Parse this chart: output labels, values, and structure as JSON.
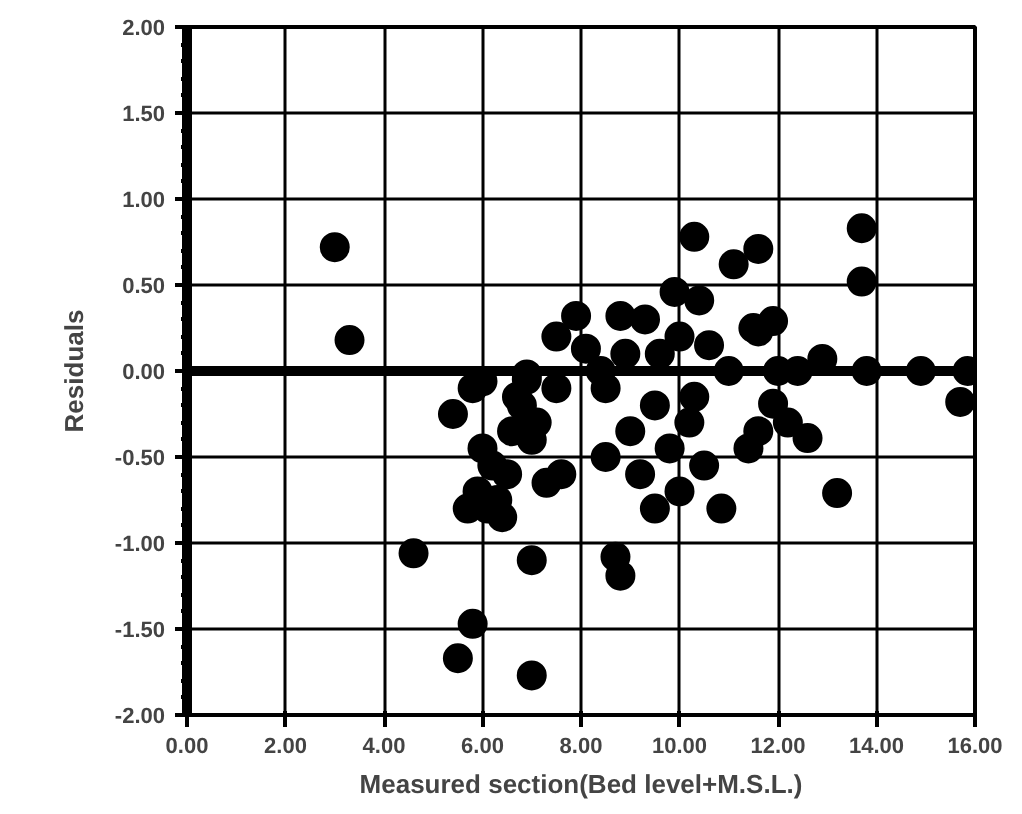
{
  "chart_data": {
    "type": "scatter",
    "xlabel": "Measured section(Bed level+M.S.L.)",
    "ylabel": "Residuals",
    "xlim": [
      0,
      16
    ],
    "ylim": [
      -2,
      2
    ],
    "xticks": [
      {
        "value": 0,
        "label": "0.00"
      },
      {
        "value": 2,
        "label": "2.00"
      },
      {
        "value": 4,
        "label": "4.00"
      },
      {
        "value": 6,
        "label": "6.00"
      },
      {
        "value": 8,
        "label": "8.00"
      },
      {
        "value": 10,
        "label": "10.00"
      },
      {
        "value": 12,
        "label": "12.00"
      },
      {
        "value": 14,
        "label": "14.00"
      },
      {
        "value": 16,
        "label": "16.00"
      }
    ],
    "yticks": [
      {
        "value": -2,
        "label": "-2.00"
      },
      {
        "value": -1.5,
        "label": "-1.50"
      },
      {
        "value": -1,
        "label": "-1.00"
      },
      {
        "value": -0.5,
        "label": "-0.50"
      },
      {
        "value": 0,
        "label": "0.00"
      },
      {
        "value": 0.5,
        "label": "0.50"
      },
      {
        "value": 1,
        "label": "1.00"
      },
      {
        "value": 1.5,
        "label": "1.50"
      },
      {
        "value": 2,
        "label": "2.00"
      }
    ],
    "grid": true,
    "marker": "circle",
    "ref_lines": [
      {
        "axis": "y",
        "value": 0,
        "color": "#000000"
      }
    ],
    "series": [
      {
        "color": "#000000",
        "x": [
          3.0,
          3.3,
          4.6,
          5.5,
          5.8,
          7.0,
          7.0,
          8.8,
          8.7,
          13.2,
          10.85,
          10.3,
          11.6,
          11.1,
          13.7,
          13.7,
          8.8,
          7.9,
          9.9,
          10.4,
          11.9,
          11.6,
          12.9,
          13.8,
          14.9,
          15.85,
          15.7,
          11.9,
          12.6,
          5.4,
          5.8,
          6.0,
          5.9,
          6.1,
          6.3,
          6.2,
          6.5,
          6.6,
          6.8,
          6.9,
          7.0,
          7.3,
          7.6,
          6.4,
          5.7,
          6.7,
          7.1,
          7.5,
          7.5,
          8.1,
          8.4,
          6.0,
          6.9,
          8.5,
          8.5,
          9.0,
          9.2,
          9.5,
          9.5,
          9.8,
          10.0,
          10.2,
          10.5,
          10.3,
          10.6,
          9.3,
          9.6,
          10.0,
          8.9,
          11.4,
          11.6,
          12.2,
          11.0,
          12.0,
          12.4,
          11.5
        ],
        "values": [
          0.72,
          0.18,
          -1.06,
          -1.67,
          -1.47,
          -1.77,
          -1.1,
          -1.19,
          -1.08,
          -0.71,
          -0.8,
          0.78,
          0.71,
          0.62,
          0.83,
          0.52,
          0.32,
          0.32,
          0.46,
          0.41,
          0.29,
          0.23,
          0.07,
          0.0,
          0.0,
          0.0,
          -0.18,
          -0.19,
          -0.39,
          -0.25,
          -0.1,
          -0.45,
          -0.7,
          -0.8,
          -0.75,
          -0.55,
          -0.6,
          -0.35,
          -0.2,
          -0.05,
          -0.4,
          -0.65,
          -0.6,
          -0.85,
          -0.8,
          -0.15,
          -0.3,
          -0.1,
          0.2,
          0.13,
          0.0,
          -0.06,
          -0.02,
          -0.1,
          -0.5,
          -0.35,
          -0.6,
          -0.2,
          -0.8,
          -0.45,
          -0.7,
          -0.3,
          -0.55,
          -0.15,
          0.15,
          0.3,
          0.1,
          0.2,
          0.1,
          -0.45,
          -0.35,
          -0.3,
          0.0,
          0.0,
          0.0,
          0.25
        ]
      }
    ]
  }
}
